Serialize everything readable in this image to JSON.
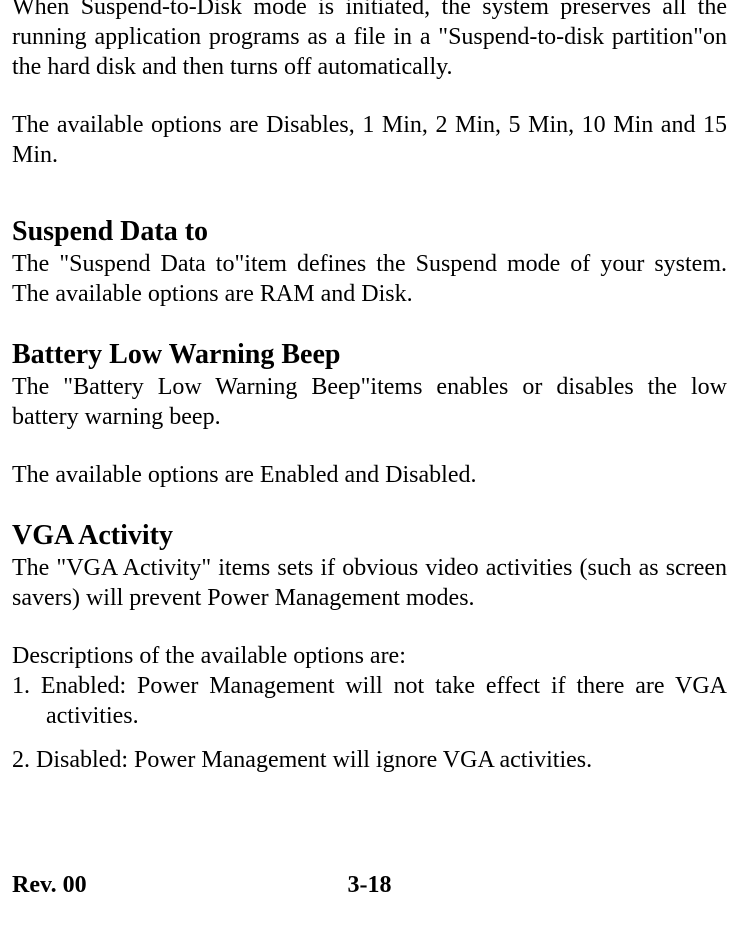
{
  "intro": {
    "p1": "When Suspend-to-Disk mode is initiated, the system preserves all the running application programs as a file in a \"Suspend-to-disk partition\"on the hard disk and then turns off automatically.",
    "p2": "The available options are Disables, 1 Min, 2 Min, 5 Min, 10 Min and 15 Min."
  },
  "suspend_data_to": {
    "heading": "Suspend Data to",
    "p1": "The \"Suspend Data to\"item defines the Suspend mode of your system. The available options are RAM and Disk."
  },
  "battery_low": {
    "heading": "Battery Low Warning Beep",
    "p1": "The \"Battery Low Warning Beep\"items enables or disables the low battery warning beep.",
    "p2": "The available options are Enabled and Disabled."
  },
  "vga_activity": {
    "heading": "VGA Activity",
    "p1": "The \"VGA Activity\" items sets if obvious video activities (such as screen savers) will prevent Power Management modes.",
    "desc": "Descriptions of the available options are:",
    "li1": "1. Enabled: Power Management will not take effect if there are VGA activities.",
    "li2": "2. Disabled: Power Management will ignore VGA activities."
  },
  "footer": {
    "rev": "Rev. 00",
    "page": "3-18"
  }
}
